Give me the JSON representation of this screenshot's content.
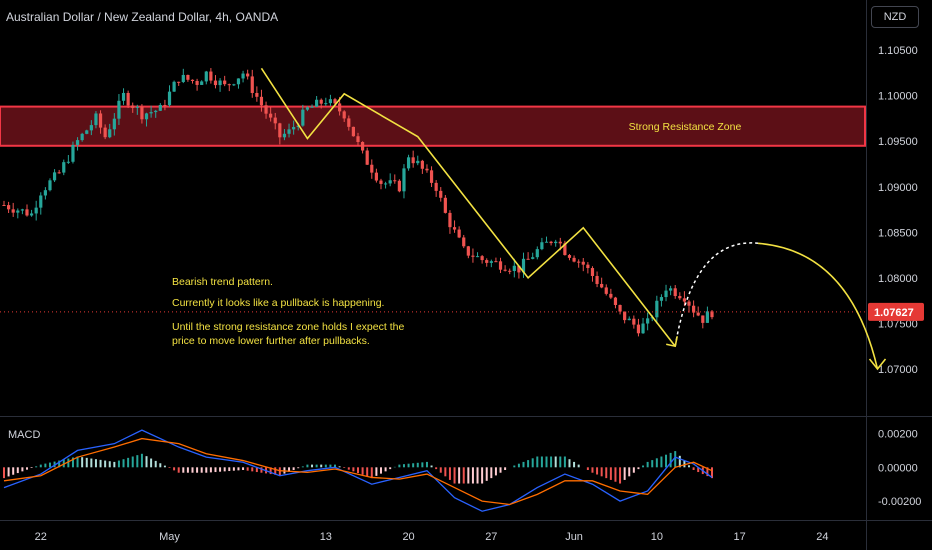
{
  "header": {
    "title": "Australian Dollar / New Zealand Dollar, 4h, OANDA",
    "currency_button": "NZD"
  },
  "colors": {
    "background": "#000000",
    "up": "#26a69a",
    "down": "#ef5350",
    "annotation": "#f2e142",
    "resistance_fill": "#5c0f16",
    "resistance_border": "#f23645",
    "last_price_bg": "#e53935",
    "macd_line": "#2962ff",
    "signal_line": "#ff6d00"
  },
  "chart_data": [
    {
      "type": "candlestick",
      "title": "Australian Dollar / New Zealand Dollar, 4h, OANDA",
      "y_axis": {
        "ticks": [
          "1.10500",
          "1.10000",
          "1.09500",
          "1.09000",
          "1.08500",
          "1.08000",
          "1.07500",
          "1.07000"
        ],
        "range": [
          1.0655,
          1.1105
        ]
      },
      "x_axis": {
        "ticks": [
          "22",
          "May",
          "13",
          "20",
          "27",
          "Jun",
          "10",
          "17",
          "24"
        ]
      },
      "last_price": "1.07627",
      "price_path": [
        {
          "d": 0,
          "p": 1.088
        },
        {
          "d": 3,
          "p": 1.087
        },
        {
          "d": 4,
          "p": 1.0895
        },
        {
          "d": 6,
          "p": 1.0915
        },
        {
          "d": 8,
          "p": 1.095
        },
        {
          "d": 10,
          "p": 1.0975
        },
        {
          "d": 11,
          "p": 1.0955
        },
        {
          "d": 13,
          "p": 1.1
        },
        {
          "d": 15,
          "p": 1.098
        },
        {
          "d": 17,
          "p": 1.0985
        },
        {
          "d": 19,
          "p": 1.102
        },
        {
          "d": 21,
          "p": 1.1015
        },
        {
          "d": 22,
          "p": 1.1025
        },
        {
          "d": 24,
          "p": 1.101
        },
        {
          "d": 26,
          "p": 1.1025
        },
        {
          "d": 28,
          "p": 1.099
        },
        {
          "d": 30,
          "p": 1.0955
        },
        {
          "d": 31,
          "p": 1.096
        },
        {
          "d": 33,
          "p": 1.0985
        },
        {
          "d": 35,
          "p": 1.0995
        },
        {
          "d": 37,
          "p": 1.098
        },
        {
          "d": 39,
          "p": 1.0935
        },
        {
          "d": 41,
          "p": 1.0905
        },
        {
          "d": 43,
          "p": 1.09
        },
        {
          "d": 44,
          "p": 1.0935
        },
        {
          "d": 45,
          "p": 1.0925
        },
        {
          "d": 47,
          "p": 1.09
        },
        {
          "d": 48,
          "p": 1.087
        },
        {
          "d": 50,
          "p": 1.083
        },
        {
          "d": 52,
          "p": 1.082
        },
        {
          "d": 54,
          "p": 1.0815
        },
        {
          "d": 56,
          "p": 1.081
        },
        {
          "d": 58,
          "p": 1.083
        },
        {
          "d": 60,
          "p": 1.0845
        },
        {
          "d": 61,
          "p": 1.083
        },
        {
          "d": 63,
          "p": 1.0815
        },
        {
          "d": 65,
          "p": 1.079
        },
        {
          "d": 67,
          "p": 1.076
        },
        {
          "d": 69,
          "p": 1.0745
        },
        {
          "d": 70,
          "p": 1.075
        },
        {
          "d": 71,
          "p": 1.077
        },
        {
          "d": 72,
          "p": 1.079
        },
        {
          "d": 74,
          "p": 1.078
        },
        {
          "d": 75,
          "p": 1.0765
        },
        {
          "d": 76,
          "p": 1.0755
        },
        {
          "d": 77,
          "p": 1.07627
        }
      ],
      "resistance_zone": {
        "label": "Strong Resistance Zone",
        "from": 1.0945,
        "to": 1.0988
      },
      "notes": [
        "Bearish trend pattern.",
        "Currently it looks like a pullback is happening.",
        "Until the strong resistance zone holds I expect the",
        "price to move lower further after pullbacks."
      ]
    },
    {
      "type": "line",
      "title": "MACD",
      "y_axis": {
        "ticks": [
          "0.00200",
          "0.00000",
          "-0.00200"
        ],
        "range": [
          -0.003,
          0.0028
        ]
      },
      "series": [
        {
          "role": "macd",
          "points": [
            {
              "d": 0,
              "v": -0.0012
            },
            {
              "d": 4,
              "v": -0.0004
            },
            {
              "d": 8,
              "v": 0.001
            },
            {
              "d": 12,
              "v": 0.0014
            },
            {
              "d": 15,
              "v": 0.0022
            },
            {
              "d": 19,
              "v": 0.0012
            },
            {
              "d": 22,
              "v": 0.0006
            },
            {
              "d": 26,
              "v": 0.0003
            },
            {
              "d": 30,
              "v": -0.0005
            },
            {
              "d": 33,
              "v": -0.0002
            },
            {
              "d": 36,
              "v": 0.0
            },
            {
              "d": 40,
              "v": -0.001
            },
            {
              "d": 43,
              "v": -0.0006
            },
            {
              "d": 46,
              "v": -0.0002
            },
            {
              "d": 49,
              "v": -0.0018
            },
            {
              "d": 52,
              "v": -0.0026
            },
            {
              "d": 55,
              "v": -0.0022
            },
            {
              "d": 58,
              "v": -0.0012
            },
            {
              "d": 61,
              "v": -0.0004
            },
            {
              "d": 64,
              "v": -0.001
            },
            {
              "d": 67,
              "v": -0.002
            },
            {
              "d": 70,
              "v": -0.0014
            },
            {
              "d": 73,
              "v": 0.0006
            },
            {
              "d": 75,
              "v": 0.0002
            },
            {
              "d": 77,
              "v": -0.0006
            }
          ]
        },
        {
          "role": "signal",
          "points": [
            {
              "d": 0,
              "v": -0.0008
            },
            {
              "d": 4,
              "v": -0.0005
            },
            {
              "d": 8,
              "v": 0.0006
            },
            {
              "d": 12,
              "v": 0.0012
            },
            {
              "d": 15,
              "v": 0.0017
            },
            {
              "d": 19,
              "v": 0.0014
            },
            {
              "d": 22,
              "v": 0.0008
            },
            {
              "d": 26,
              "v": 0.0004
            },
            {
              "d": 30,
              "v": -0.0002
            },
            {
              "d": 33,
              "v": -0.0003
            },
            {
              "d": 36,
              "v": -0.0001
            },
            {
              "d": 40,
              "v": -0.0006
            },
            {
              "d": 43,
              "v": -0.0007
            },
            {
              "d": 46,
              "v": -0.0004
            },
            {
              "d": 49,
              "v": -0.0012
            },
            {
              "d": 52,
              "v": -0.002
            },
            {
              "d": 55,
              "v": -0.0022
            },
            {
              "d": 58,
              "v": -0.0016
            },
            {
              "d": 61,
              "v": -0.0008
            },
            {
              "d": 64,
              "v": -0.0008
            },
            {
              "d": 67,
              "v": -0.0014
            },
            {
              "d": 70,
              "v": -0.0016
            },
            {
              "d": 73,
              "v": 0.0
            },
            {
              "d": 75,
              "v": 0.0003
            },
            {
              "d": 77,
              "v": -0.0002
            }
          ]
        }
      ]
    }
  ]
}
